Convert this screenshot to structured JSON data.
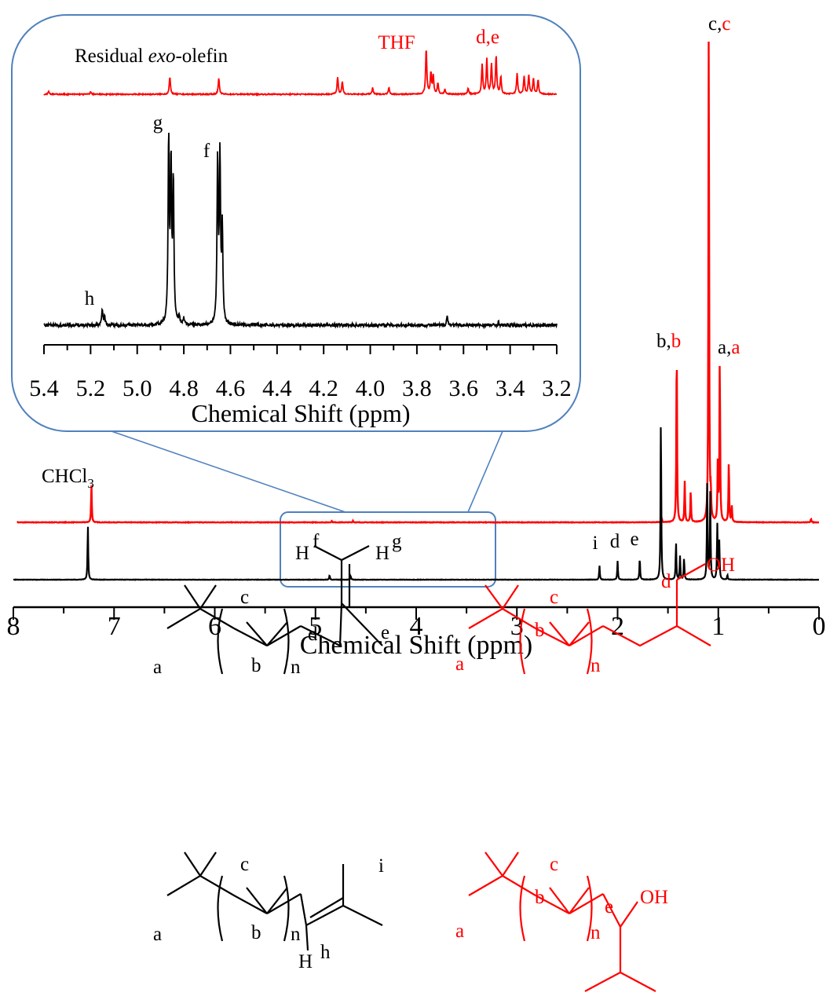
{
  "main_axis": {
    "label": "Chemical Shift (ppm)",
    "ticks": [
      "8",
      "7",
      "6",
      "5",
      "4",
      "3",
      "2",
      "1",
      "0"
    ],
    "range": [
      8,
      0
    ]
  },
  "inset_axis": {
    "label": "Chemical Shift (ppm)",
    "ticks": [
      "5.4",
      "5.2",
      "5.0",
      "4.8",
      "4.6",
      "4.4",
      "4.2",
      "4.0",
      "3.8",
      "3.6",
      "3.4",
      "3.2"
    ],
    "range": [
      5.4,
      3.2
    ]
  },
  "labels": {
    "chcl3": "CHCl",
    "chcl3_sub": "3",
    "residual": "Residual ",
    "residual_italic": "exo",
    "residual_rest": "-olefin",
    "thf": "THF",
    "de_red": "d,e",
    "g": "g",
    "f": "f",
    "h": "h",
    "i": "i",
    "d": "d",
    "e": "e",
    "bb_1": "b,",
    "bb_2": "b",
    "cc_1": "c,",
    "cc_2": "c",
    "aa_1": "a,",
    "aa_2": "a"
  },
  "structures": {
    "s1": {
      "a": "a",
      "b": "b",
      "c": "c",
      "d": "d",
      "e": "e",
      "n": "n",
      "hf": "H",
      "f": "f",
      "hg": "H",
      "g": "g"
    },
    "s2": {
      "a": "a",
      "b": "b",
      "c": "c",
      "d": "d",
      "n": "n",
      "oh": "OH"
    },
    "s3": {
      "a": "a",
      "b": "b",
      "c": "c",
      "i": "i",
      "n": "n",
      "hh": "H",
      "h": "h"
    },
    "s4": {
      "a": "a",
      "b": "b",
      "c": "c",
      "e": "e",
      "n": "n",
      "oh": "OH"
    }
  },
  "colors": {
    "black": "#000000",
    "red": "#ff0000",
    "inset_border": "#4f81bd"
  },
  "chart_data": [
    {
      "type": "line",
      "xlabel": "Chemical Shift (ppm)",
      "xlim": [
        8,
        0
      ],
      "series": [
        {
          "color": "#ff0000",
          "peaks": [
            {
              "x": 7.26,
              "h": 48
            },
            {
              "x": 4.86,
              "h": 2
            },
            {
              "x": 4.65,
              "h": 2
            },
            {
              "x": 1.57,
              "h": 6
            },
            {
              "x": 1.42,
              "h": 232
            },
            {
              "x": 1.34,
              "h": 52
            },
            {
              "x": 1.28,
              "h": 40
            },
            {
              "x": 1.1,
              "h": 640
            },
            {
              "x": 1.08,
              "h": 30
            },
            {
              "x": 1.01,
              "h": 75
            },
            {
              "x": 0.99,
              "h": 212
            },
            {
              "x": 0.9,
              "h": 78
            },
            {
              "x": 0.87,
              "h": 20
            },
            {
              "x": 0.08,
              "h": 5
            }
          ]
        },
        {
          "color": "#000000",
          "peaks": [
            {
              "x": 7.26,
              "h": 70
            },
            {
              "x": 4.86,
              "h": 6
            },
            {
              "x": 4.65,
              "h": 5
            },
            {
              "x": 2.18,
              "h": 18
            },
            {
              "x": 2.0,
              "h": 24
            },
            {
              "x": 1.78,
              "h": 28
            },
            {
              "x": 1.57,
              "h": 210
            },
            {
              "x": 1.42,
              "h": 48
            },
            {
              "x": 1.38,
              "h": 30
            },
            {
              "x": 1.34,
              "h": 28
            },
            {
              "x": 1.11,
              "h": 130
            },
            {
              "x": 1.08,
              "h": 110
            },
            {
              "x": 1.01,
              "h": 70
            },
            {
              "x": 0.99,
              "h": 48
            },
            {
              "x": 0.91,
              "h": 6
            }
          ]
        }
      ]
    },
    {
      "type": "line",
      "xlabel": "Chemical Shift (ppm)",
      "xlim": [
        5.4,
        3.2
      ],
      "series": [
        {
          "color": "#ff0000",
          "peaks": [
            {
              "x": 5.38,
              "h": 4
            },
            {
              "x": 5.2,
              "h": 3
            },
            {
              "x": 4.86,
              "h": 22
            },
            {
              "x": 4.65,
              "h": 20
            },
            {
              "x": 4.14,
              "h": 22
            },
            {
              "x": 4.12,
              "h": 16
            },
            {
              "x": 3.99,
              "h": 8
            },
            {
              "x": 3.92,
              "h": 9
            },
            {
              "x": 3.76,
              "h": 58
            },
            {
              "x": 3.74,
              "h": 26
            },
            {
              "x": 3.73,
              "h": 24
            },
            {
              "x": 3.71,
              "h": 14
            },
            {
              "x": 3.68,
              "h": 6
            },
            {
              "x": 3.58,
              "h": 8
            },
            {
              "x": 3.52,
              "h": 38
            },
            {
              "x": 3.5,
              "h": 44
            },
            {
              "x": 3.48,
              "h": 38
            },
            {
              "x": 3.46,
              "h": 48
            },
            {
              "x": 3.44,
              "h": 22
            },
            {
              "x": 3.37,
              "h": 26
            },
            {
              "x": 3.34,
              "h": 22
            },
            {
              "x": 3.32,
              "h": 24
            },
            {
              "x": 3.3,
              "h": 20
            },
            {
              "x": 3.28,
              "h": 18
            }
          ]
        },
        {
          "color": "#000000",
          "peaks": [
            {
              "x": 5.15,
              "h": 22
            },
            {
              "x": 5.14,
              "h": 10
            },
            {
              "x": 4.865,
              "h": 232
            },
            {
              "x": 4.855,
              "h": 200
            },
            {
              "x": 4.845,
              "h": 180
            },
            {
              "x": 4.82,
              "h": 10
            },
            {
              "x": 4.8,
              "h": 8
            },
            {
              "x": 4.655,
              "h": 206
            },
            {
              "x": 4.645,
              "h": 208
            },
            {
              "x": 4.635,
              "h": 120
            },
            {
              "x": 3.67,
              "h": 12
            },
            {
              "x": 3.45,
              "h": 4
            }
          ]
        }
      ]
    }
  ]
}
